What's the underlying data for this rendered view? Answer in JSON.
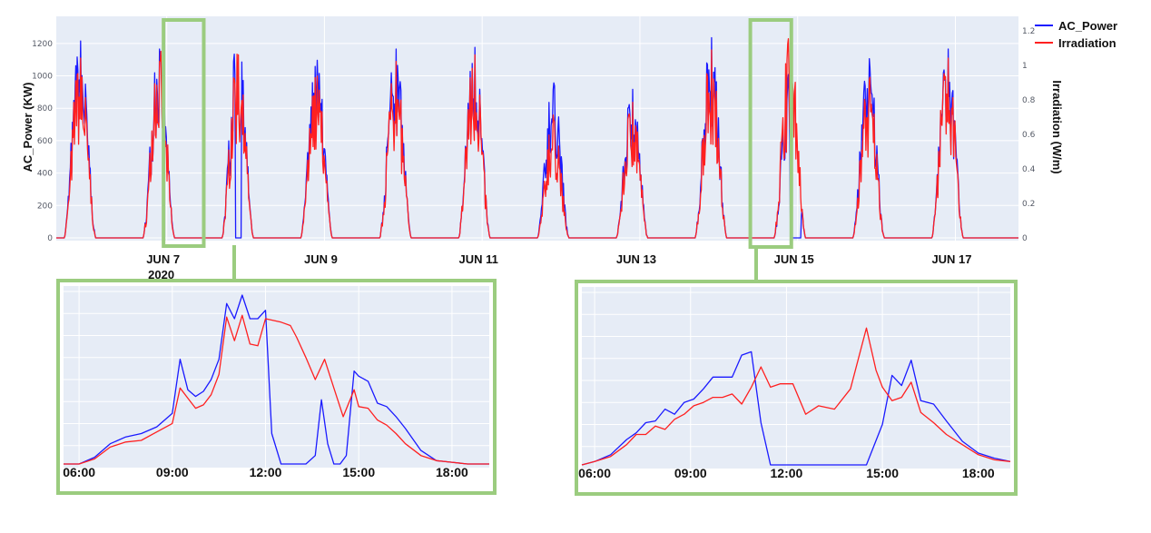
{
  "colors": {
    "ac_power": "#1a1aff",
    "irradiation": "#ff2020",
    "plot_bg": "#e6ecf6",
    "grid": "#ffffff",
    "highlight": "#9bcc7f"
  },
  "chart_data": [
    {
      "id": "main",
      "type": "line",
      "title": "",
      "xlabel": "",
      "ylabel": "AC_Power (KW)",
      "y2label": "Irradiation (W/m)",
      "ylim": [
        0,
        1300
      ],
      "y2lim": [
        0,
        1.22
      ],
      "yticks": [
        "0",
        "200",
        "400",
        "600",
        "800",
        "1000",
        "1200"
      ],
      "y2ticks": [
        "0",
        "0.2",
        "0.4",
        "0.6",
        "0.8",
        "1",
        "1.2"
      ],
      "xlim": [
        5.6,
        17.8
      ],
      "xticks": [
        {
          "x": 7,
          "label": "JUN 7",
          "sublabel": "2020"
        },
        {
          "x": 9,
          "label": "JUN 9"
        },
        {
          "x": 11,
          "label": "JUN 11"
        },
        {
          "x": 13,
          "label": "JUN 13"
        },
        {
          "x": 15,
          "label": "JUN 15"
        },
        {
          "x": 17,
          "label": "JUN 17"
        }
      ],
      "legend": [
        {
          "key": "ac_power",
          "label": "AC_Power"
        },
        {
          "key": "irradiation",
          "label": "Irradiation"
        }
      ],
      "legend_position": "top-right",
      "grid": true,
      "highlights": [
        [
          6.96,
          7.47
        ],
        [
          14.4,
          14.92
        ]
      ],
      "daily_peaks": {
        "days": [
          5.9,
          6.9,
          7.9,
          8.9,
          9.9,
          10.9,
          11.9,
          12.9,
          13.9,
          14.9,
          15.9,
          16.9
        ],
        "ac_power": [
          1220,
          1170,
          1250,
          1100,
          1170,
          1180,
          960,
          920,
          1240,
          1050,
          1110,
          1170
        ],
        "irradiation": [
          1.1,
          1.08,
          1.12,
          0.99,
          1.08,
          1.12,
          0.72,
          0.83,
          1.15,
          1.22,
          0.97,
          1.1
        ]
      }
    },
    {
      "id": "zoom-jun7",
      "type": "line",
      "xticks": [
        "06:00",
        "09:00",
        "12:00",
        "15:00",
        "18:00"
      ],
      "xlim": [
        5.5,
        19.2
      ],
      "ylim": [
        0,
        1.0
      ],
      "series": [
        {
          "key": "ac_power",
          "name": "AC_Power",
          "x": [
            5.5,
            6.0,
            6.5,
            7.0,
            7.5,
            8.0,
            8.5,
            9.0,
            9.25,
            9.5,
            9.75,
            10.0,
            10.25,
            10.5,
            10.75,
            11.0,
            11.25,
            11.5,
            11.75,
            12.0,
            12.2,
            12.5,
            12.8,
            13.0,
            13.3,
            13.6,
            13.8,
            14.0,
            14.2,
            14.4,
            14.6,
            14.85,
            15.0,
            15.3,
            15.6,
            15.9,
            16.2,
            16.5,
            17.0,
            17.5,
            18.0,
            18.5,
            19.2
          ],
          "values": [
            0,
            0,
            0.04,
            0.12,
            0.16,
            0.18,
            0.22,
            0.3,
            0.62,
            0.44,
            0.4,
            0.43,
            0.5,
            0.62,
            0.95,
            0.86,
            1.0,
            0.86,
            0.86,
            0.91,
            0.18,
            0,
            0,
            0,
            0,
            0.05,
            0.38,
            0.12,
            0,
            0,
            0.05,
            0.55,
            0.52,
            0.49,
            0.36,
            0.34,
            0.28,
            0.21,
            0.08,
            0.02,
            0.01,
            0,
            0
          ]
        },
        {
          "key": "irradiation",
          "name": "Irradiation",
          "x": [
            5.5,
            6.0,
            6.5,
            7.0,
            7.5,
            8.0,
            8.5,
            9.0,
            9.25,
            9.5,
            9.75,
            10.0,
            10.25,
            10.5,
            10.75,
            11.0,
            11.25,
            11.5,
            11.75,
            12.0,
            12.5,
            12.8,
            13.0,
            13.3,
            13.6,
            13.9,
            14.2,
            14.5,
            14.85,
            15.0,
            15.3,
            15.6,
            15.9,
            16.2,
            16.5,
            17.0,
            17.5,
            18.0,
            18.5,
            19.2
          ],
          "values": [
            0,
            0,
            0.03,
            0.1,
            0.13,
            0.14,
            0.19,
            0.24,
            0.45,
            0.39,
            0.33,
            0.35,
            0.41,
            0.53,
            0.87,
            0.73,
            0.88,
            0.71,
            0.7,
            0.86,
            0.84,
            0.82,
            0.75,
            0.63,
            0.5,
            0.62,
            0.45,
            0.28,
            0.44,
            0.34,
            0.33,
            0.26,
            0.23,
            0.18,
            0.12,
            0.05,
            0.02,
            0.01,
            0,
            0
          ]
        }
      ]
    },
    {
      "id": "zoom-jun14",
      "type": "line",
      "xticks": [
        "06:00",
        "09:00",
        "12:00",
        "15:00",
        "18:00"
      ],
      "xlim": [
        5.6,
        19.0
      ],
      "ylim": [
        0,
        1.0
      ],
      "series": [
        {
          "key": "ac_power",
          "name": "AC_Power",
          "x": [
            5.6,
            6.0,
            6.5,
            7.0,
            7.3,
            7.6,
            7.9,
            8.2,
            8.5,
            8.8,
            9.1,
            9.4,
            9.7,
            10.0,
            10.3,
            10.6,
            10.9,
            11.2,
            11.5,
            11.8,
            12.2,
            12.6,
            13.0,
            14.0,
            14.5,
            15.0,
            15.3,
            15.6,
            15.9,
            16.2,
            16.6,
            17.0,
            17.5,
            18.0,
            18.5,
            19.0
          ],
          "values": [
            0,
            0.02,
            0.06,
            0.15,
            0.19,
            0.25,
            0.26,
            0.33,
            0.3,
            0.37,
            0.39,
            0.45,
            0.52,
            0.52,
            0.52,
            0.65,
            0.67,
            0.25,
            0,
            0,
            0,
            0,
            0,
            0,
            0,
            0.24,
            0.53,
            0.47,
            0.62,
            0.38,
            0.36,
            0.26,
            0.14,
            0.07,
            0.04,
            0.02
          ]
        },
        {
          "key": "irradiation",
          "name": "Irradiation",
          "x": [
            5.6,
            6.0,
            6.5,
            7.0,
            7.3,
            7.6,
            7.9,
            8.2,
            8.5,
            8.8,
            9.1,
            9.4,
            9.7,
            10.0,
            10.3,
            10.6,
            10.9,
            11.2,
            11.5,
            11.8,
            12.2,
            12.6,
            13.0,
            13.5,
            14.0,
            14.5,
            14.8,
            15.0,
            15.3,
            15.6,
            15.9,
            16.2,
            16.6,
            17.0,
            17.5,
            18.0,
            18.5,
            19.0
          ],
          "values": [
            0,
            0.02,
            0.05,
            0.12,
            0.18,
            0.18,
            0.23,
            0.21,
            0.27,
            0.3,
            0.35,
            0.37,
            0.4,
            0.4,
            0.42,
            0.36,
            0.46,
            0.58,
            0.46,
            0.48,
            0.48,
            0.3,
            0.35,
            0.33,
            0.45,
            0.81,
            0.56,
            0.46,
            0.38,
            0.4,
            0.49,
            0.31,
            0.25,
            0.18,
            0.12,
            0.06,
            0.03,
            0.02
          ]
        }
      ]
    }
  ]
}
